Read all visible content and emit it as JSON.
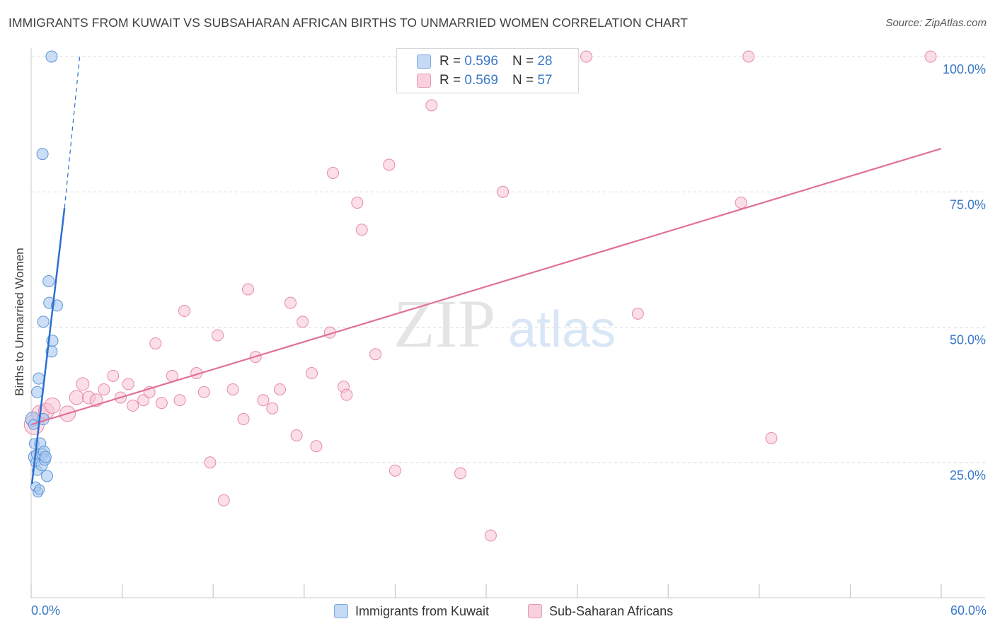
{
  "title": "IMMIGRANTS FROM KUWAIT VS SUBSAHARAN AFRICAN BIRTHS TO UNMARRIED WOMEN CORRELATION CHART",
  "source": "Source: ZipAtlas.com",
  "watermark": {
    "zip": "ZIP",
    "atlas": "atlas"
  },
  "colors": {
    "blue_fill": "#a9c8f0",
    "blue_stroke": "#5b93d6",
    "blue_line": "#2c6fd1",
    "pink_fill": "#f7c3d3",
    "pink_stroke": "#e58aa9",
    "pink_line": "#e07099",
    "tick_label": "#3a78c9",
    "grid": "#dddddd"
  },
  "legend": {
    "rows": [
      {
        "r_label": "R =",
        "r_value": "0.596",
        "n_label": "N =",
        "n_value": "28"
      },
      {
        "r_label": "R =",
        "r_value": "0.569",
        "n_label": "N =",
        "n_value": "57"
      }
    ]
  },
  "chart_data": {
    "type": "scatter",
    "title": "IMMIGRANTS FROM KUWAIT VS SUBSAHARAN AFRICAN BIRTHS TO UNMARRIED WOMEN CORRELATION CHART",
    "xlabel": "",
    "ylabel": "Births to Unmarried Women",
    "xlim": [
      0,
      60
    ],
    "ylim": [
      0,
      100
    ],
    "x_tick_labels": [
      "0.0%",
      "60.0%"
    ],
    "y_ticks": [
      25,
      50,
      75,
      100
    ],
    "y_tick_labels": [
      "25.0%",
      "50.0%",
      "75.0%",
      "100.0%"
    ],
    "grid": true,
    "legend_position": "top-center",
    "series": [
      {
        "name": "Immigrants from Kuwait",
        "R": 0.596,
        "N": 28,
        "trend": {
          "x0": 0.05,
          "y0": 21.0,
          "x1": 2.2,
          "y1": 72.0,
          "dash_x1": 3.2,
          "dash_y1": 100.0
        },
        "points": [
          {
            "x": 0.1,
            "y": 33.0,
            "s": 10
          },
          {
            "x": 0.15,
            "y": 32.0,
            "s": 7
          },
          {
            "x": 0.2,
            "y": 28.5,
            "s": 7
          },
          {
            "x": 0.25,
            "y": 26.0,
            "s": 9
          },
          {
            "x": 0.3,
            "y": 25.0,
            "s": 7
          },
          {
            "x": 0.35,
            "y": 26.5,
            "s": 7
          },
          {
            "x": 0.3,
            "y": 20.5,
            "s": 7
          },
          {
            "x": 0.45,
            "y": 19.5,
            "s": 7
          },
          {
            "x": 0.55,
            "y": 20.0,
            "s": 7
          },
          {
            "x": 0.4,
            "y": 23.5,
            "s": 7
          },
          {
            "x": 0.5,
            "y": 40.5,
            "s": 8
          },
          {
            "x": 0.4,
            "y": 38.0,
            "s": 8
          },
          {
            "x": 0.6,
            "y": 28.5,
            "s": 8
          },
          {
            "x": 0.7,
            "y": 24.5,
            "s": 8
          },
          {
            "x": 0.75,
            "y": 26.5,
            "s": 8
          },
          {
            "x": 0.85,
            "y": 27.0,
            "s": 8
          },
          {
            "x": 0.9,
            "y": 25.5,
            "s": 8
          },
          {
            "x": 0.95,
            "y": 26.0,
            "s": 8
          },
          {
            "x": 1.05,
            "y": 22.5,
            "s": 8
          },
          {
            "x": 0.8,
            "y": 33.0,
            "s": 8
          },
          {
            "x": 0.8,
            "y": 51.0,
            "s": 8
          },
          {
            "x": 1.2,
            "y": 54.5,
            "s": 8
          },
          {
            "x": 1.4,
            "y": 47.5,
            "s": 8
          },
          {
            "x": 1.35,
            "y": 45.5,
            "s": 8
          },
          {
            "x": 1.7,
            "y": 54.0,
            "s": 8
          },
          {
            "x": 1.15,
            "y": 58.5,
            "s": 8
          },
          {
            "x": 0.75,
            "y": 82.0,
            "s": 8
          },
          {
            "x": 1.35,
            "y": 100.0,
            "s": 8
          }
        ]
      },
      {
        "name": "Sub-Saharan Africans",
        "R": 0.569,
        "N": 57,
        "trend": {
          "x0": 0.0,
          "y0": 32.0,
          "x1": 60.0,
          "y1": 83.0
        },
        "points": [
          {
            "x": 0.2,
            "y": 32.0,
            "s": 14
          },
          {
            "x": 0.6,
            "y": 34.0,
            "s": 12
          },
          {
            "x": 1.0,
            "y": 34.5,
            "s": 11
          },
          {
            "x": 1.4,
            "y": 35.5,
            "s": 11
          },
          {
            "x": 2.4,
            "y": 34.0,
            "s": 11
          },
          {
            "x": 3.0,
            "y": 37.0,
            "s": 10
          },
          {
            "x": 3.4,
            "y": 39.5,
            "s": 9
          },
          {
            "x": 3.8,
            "y": 37.0,
            "s": 9
          },
          {
            "x": 4.3,
            "y": 36.5,
            "s": 9
          },
          {
            "x": 4.8,
            "y": 38.5,
            "s": 8
          },
          {
            "x": 5.4,
            "y": 41.0,
            "s": 8
          },
          {
            "x": 5.9,
            "y": 37.0,
            "s": 8
          },
          {
            "x": 6.4,
            "y": 39.5,
            "s": 8
          },
          {
            "x": 6.7,
            "y": 35.5,
            "s": 8
          },
          {
            "x": 7.4,
            "y": 36.5,
            "s": 8
          },
          {
            "x": 7.8,
            "y": 38.0,
            "s": 8
          },
          {
            "x": 8.2,
            "y": 47.0,
            "s": 8
          },
          {
            "x": 8.6,
            "y": 36.0,
            "s": 8
          },
          {
            "x": 9.3,
            "y": 41.0,
            "s": 8
          },
          {
            "x": 9.8,
            "y": 36.5,
            "s": 8
          },
          {
            "x": 10.1,
            "y": 53.0,
            "s": 8
          },
          {
            "x": 10.9,
            "y": 41.5,
            "s": 8
          },
          {
            "x": 11.4,
            "y": 38.0,
            "s": 8
          },
          {
            "x": 11.8,
            "y": 25.0,
            "s": 8
          },
          {
            "x": 12.3,
            "y": 48.5,
            "s": 8
          },
          {
            "x": 12.7,
            "y": 18.0,
            "s": 8
          },
          {
            "x": 13.3,
            "y": 38.5,
            "s": 8
          },
          {
            "x": 14.0,
            "y": 33.0,
            "s": 8
          },
          {
            "x": 14.3,
            "y": 57.0,
            "s": 8
          },
          {
            "x": 14.8,
            "y": 44.5,
            "s": 8
          },
          {
            "x": 15.3,
            "y": 36.5,
            "s": 8
          },
          {
            "x": 15.9,
            "y": 35.0,
            "s": 8
          },
          {
            "x": 16.4,
            "y": 38.5,
            "s": 8
          },
          {
            "x": 17.1,
            "y": 54.5,
            "s": 8
          },
          {
            "x": 17.5,
            "y": 30.0,
            "s": 8
          },
          {
            "x": 17.9,
            "y": 51.0,
            "s": 8
          },
          {
            "x": 18.5,
            "y": 41.5,
            "s": 8
          },
          {
            "x": 18.8,
            "y": 28.0,
            "s": 8
          },
          {
            "x": 19.7,
            "y": 49.0,
            "s": 8
          },
          {
            "x": 19.9,
            "y": 78.5,
            "s": 8
          },
          {
            "x": 20.6,
            "y": 39.0,
            "s": 8
          },
          {
            "x": 20.8,
            "y": 37.5,
            "s": 8
          },
          {
            "x": 21.5,
            "y": 73.0,
            "s": 8
          },
          {
            "x": 21.8,
            "y": 68.0,
            "s": 8
          },
          {
            "x": 22.7,
            "y": 45.0,
            "s": 8
          },
          {
            "x": 23.6,
            "y": 80.0,
            "s": 8
          },
          {
            "x": 24.0,
            "y": 23.5,
            "s": 8
          },
          {
            "x": 26.4,
            "y": 91.0,
            "s": 8
          },
          {
            "x": 28.3,
            "y": 23.0,
            "s": 8
          },
          {
            "x": 30.3,
            "y": 11.5,
            "s": 8
          },
          {
            "x": 31.1,
            "y": 75.0,
            "s": 8
          },
          {
            "x": 36.6,
            "y": 100.0,
            "s": 8
          },
          {
            "x": 40.0,
            "y": 52.5,
            "s": 8
          },
          {
            "x": 47.3,
            "y": 100.0,
            "s": 8
          },
          {
            "x": 46.8,
            "y": 73.0,
            "s": 8
          },
          {
            "x": 48.8,
            "y": 29.5,
            "s": 8
          },
          {
            "x": 59.3,
            "y": 100.0,
            "s": 8
          }
        ]
      }
    ]
  },
  "bottom_legend": [
    "Immigrants from Kuwait",
    "Sub-Saharan Africans"
  ]
}
